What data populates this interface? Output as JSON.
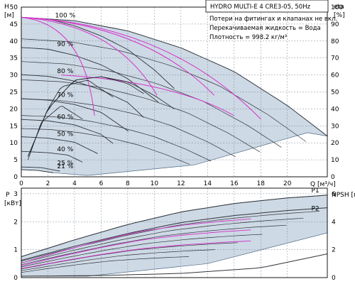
{
  "chart_data": [
    {
      "type": "line",
      "title": "HYDRO MULTI-E 4 CRE3-05, 50Hz",
      "notes": [
        "Потери на фитингах и клапанах не вкл.",
        "Перекачиваемая жидкость = Вода",
        "Плотность = 998.2 кг/м³"
      ],
      "xlabel": "Q [м³/ч]",
      "ylabel": "H [м]",
      "y2label": "eta [%]",
      "xlim": [
        0,
        23
      ],
      "ylim": [
        0,
        50
      ],
      "y2lim": [
        0,
        100
      ],
      "x_ticks": [
        0,
        2,
        4,
        6,
        8,
        10,
        12,
        14,
        16,
        18,
        20
      ],
      "y_ticks": [
        0,
        5,
        10,
        15,
        20,
        25,
        30,
        35,
        40,
        45,
        50
      ],
      "y2_ticks": [
        0,
        10,
        20,
        30,
        40,
        50,
        60,
        70,
        80,
        90,
        100
      ],
      "speed_labels": [
        {
          "text": "100 %",
          "x": 3.3,
          "y": 47
        },
        {
          "text": "90 %",
          "x": 3.3,
          "y": 38.5
        },
        {
          "text": "80 %",
          "x": 3.3,
          "y": 30.5
        },
        {
          "text": "70 %",
          "x": 3.3,
          "y": 23.5
        },
        {
          "text": "60 %",
          "x": 3.3,
          "y": 17
        },
        {
          "text": "50 %",
          "x": 3.3,
          "y": 12
        },
        {
          "text": "40 %",
          "x": 3.3,
          "y": 7.5
        },
        {
          "text": "25 %",
          "x": 3.3,
          "y": 3.5
        },
        {
          "text": "21 %",
          "x": 3.3,
          "y": 2.5
        }
      ],
      "series": [
        {
          "kind": "head",
          "speed": 1.0,
          "x": [
            0,
            2,
            4,
            6,
            8,
            10,
            11.5
          ],
          "y": [
            47,
            46.5,
            44.5,
            41.5,
            37.5,
            31.5,
            26
          ]
        },
        {
          "kind": "head",
          "speed": 0.9,
          "x": [
            0,
            2,
            4,
            6,
            8,
            10.3
          ],
          "y": [
            38.1,
            37.6,
            35.8,
            33,
            28.9,
            22
          ]
        },
        {
          "kind": "head",
          "speed": 0.8,
          "x": [
            0,
            2,
            4,
            6,
            8,
            9.2
          ],
          "y": [
            30.1,
            29.6,
            28.2,
            25.6,
            21.9,
            17.5
          ]
        },
        {
          "kind": "head",
          "speed": 0.7,
          "x": [
            0,
            2,
            4,
            6,
            8.05
          ],
          "y": [
            23,
            22.6,
            21.3,
            19,
            13.4
          ]
        },
        {
          "kind": "head",
          "speed": 0.6,
          "x": [
            0,
            2,
            4,
            6,
            6.9
          ],
          "y": [
            16.9,
            16.5,
            15.3,
            12.5,
            9.8
          ]
        },
        {
          "kind": "head",
          "speed": 0.5,
          "x": [
            0,
            2,
            4,
            5.75
          ],
          "y": [
            11.8,
            11.4,
            10.2,
            6.8
          ]
        },
        {
          "kind": "head",
          "speed": 0.4,
          "x": [
            0,
            2,
            3.5,
            4.6
          ],
          "y": [
            7.5,
            7.1,
            6.4,
            4.3
          ]
        },
        {
          "kind": "head",
          "speed": 0.25,
          "x": [
            0,
            1.5,
            2.9
          ],
          "y": [
            2.9,
            2.7,
            1.7
          ]
        },
        {
          "kind": "head",
          "speed": 0.21,
          "x": [
            0,
            1.2,
            2.4
          ],
          "y": [
            2.1,
            1.9,
            1.2
          ]
        },
        {
          "kind": "parallel-head",
          "pumps": 2,
          "x": [
            0,
            4,
            8,
            12,
            16,
            20,
            23
          ],
          "y": [
            47,
            46,
            43,
            38,
            31,
            21,
            12
          ]
        },
        {
          "kind": "efficiency",
          "speed": 1.0,
          "x": [
            0.5,
            2,
            4,
            6,
            8,
            10,
            11.5
          ],
          "y": [
            12,
            40,
            57,
            59,
            56,
            48,
            40
          ]
        },
        {
          "kind": "efficiency",
          "speed": 0.8,
          "x": [
            0.5,
            2,
            4,
            6,
            8,
            9.2
          ],
          "y": [
            12,
            40,
            57,
            59,
            55,
            49
          ]
        },
        {
          "kind": "efficiency",
          "speed": 0.6,
          "x": [
            0.5,
            2,
            3,
            5,
            6.9
          ],
          "y": [
            12,
            40,
            53,
            57,
            47
          ]
        },
        {
          "kind": "efficiency",
          "speed": 0.4,
          "x": [
            0.5,
            1.5,
            3,
            4.6
          ],
          "y": [
            10,
            32,
            42,
            34
          ]
        }
      ]
    },
    {
      "type": "line",
      "xlabel": "Q [м³/ч]",
      "ylabel": "P [кВт]",
      "y2label": "NPSH [м]",
      "xlim": [
        0,
        23
      ],
      "ylim": [
        0,
        3.2
      ],
      "y2lim": [
        0,
        6.4
      ],
      "y_ticks": [
        0,
        1,
        2,
        3
      ],
      "y2_ticks": [
        0,
        2,
        4,
        6
      ],
      "series": [
        {
          "name": "P1",
          "x": [
            0,
            4,
            8,
            12,
            16,
            20,
            23
          ],
          "y": [
            0.75,
            1.35,
            1.9,
            2.35,
            2.65,
            2.85,
            2.95
          ]
        },
        {
          "name": "P2",
          "x": [
            0,
            4,
            8,
            12,
            16,
            20,
            23
          ],
          "y": [
            0.62,
            1.12,
            1.58,
            1.97,
            2.22,
            2.4,
            2.5
          ]
        },
        {
          "kind": "NPSH",
          "x": [
            0,
            6,
            12,
            18,
            23
          ],
          "y": [
            0.1,
            0.15,
            0.3,
            0.7,
            1.7
          ]
        }
      ]
    }
  ]
}
